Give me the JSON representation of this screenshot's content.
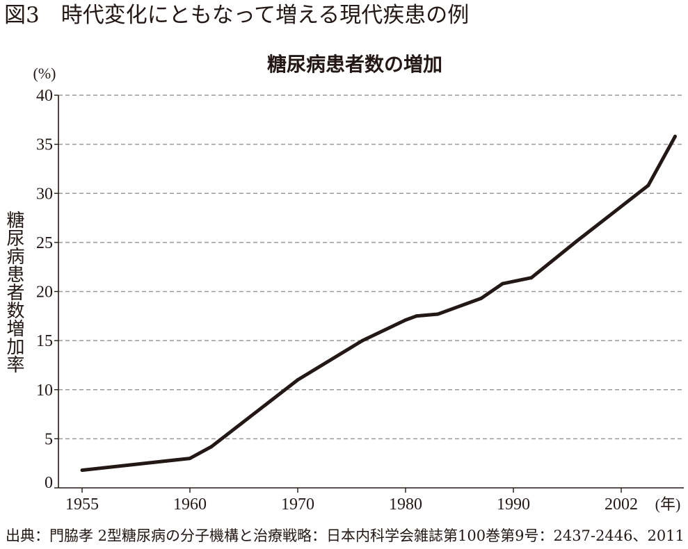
{
  "figure_title": "図3　時代変化にともなって増える現代疾患の例",
  "source_note": "出典：門脇孝 2型糖尿病の分子機構と治療戦略：日本内科学会雑誌第100巻第9号：2437-2446、2011",
  "colors": {
    "text": "#231815",
    "line": "#231815",
    "grid": "#9a9a9a"
  },
  "chart_data": {
    "type": "line",
    "title": "糖尿病患者数の増加",
    "xlabel": "",
    "ylabel": "糖尿病患者数増加率",
    "y_unit": "(%)",
    "x_unit": "(年)",
    "ylim": [
      0,
      40
    ],
    "y_ticks": [
      0,
      5,
      10,
      15,
      20,
      25,
      30,
      35,
      40
    ],
    "x_ticks": [
      1955,
      1960,
      1970,
      1980,
      1990,
      2002
    ],
    "grid": true,
    "series": [
      {
        "color": "#231815",
        "x": [
          1955,
          1960,
          1962,
          1970,
          1976,
          1980,
          1981,
          1983,
          1987,
          1989,
          1992,
          1997,
          2005,
          2008
        ],
        "y": [
          1.8,
          3.0,
          4.2,
          11.0,
          15.0,
          17.1,
          17.5,
          17.7,
          19.3,
          20.8,
          21.4,
          25.1,
          30.8,
          35.8
        ]
      }
    ]
  }
}
